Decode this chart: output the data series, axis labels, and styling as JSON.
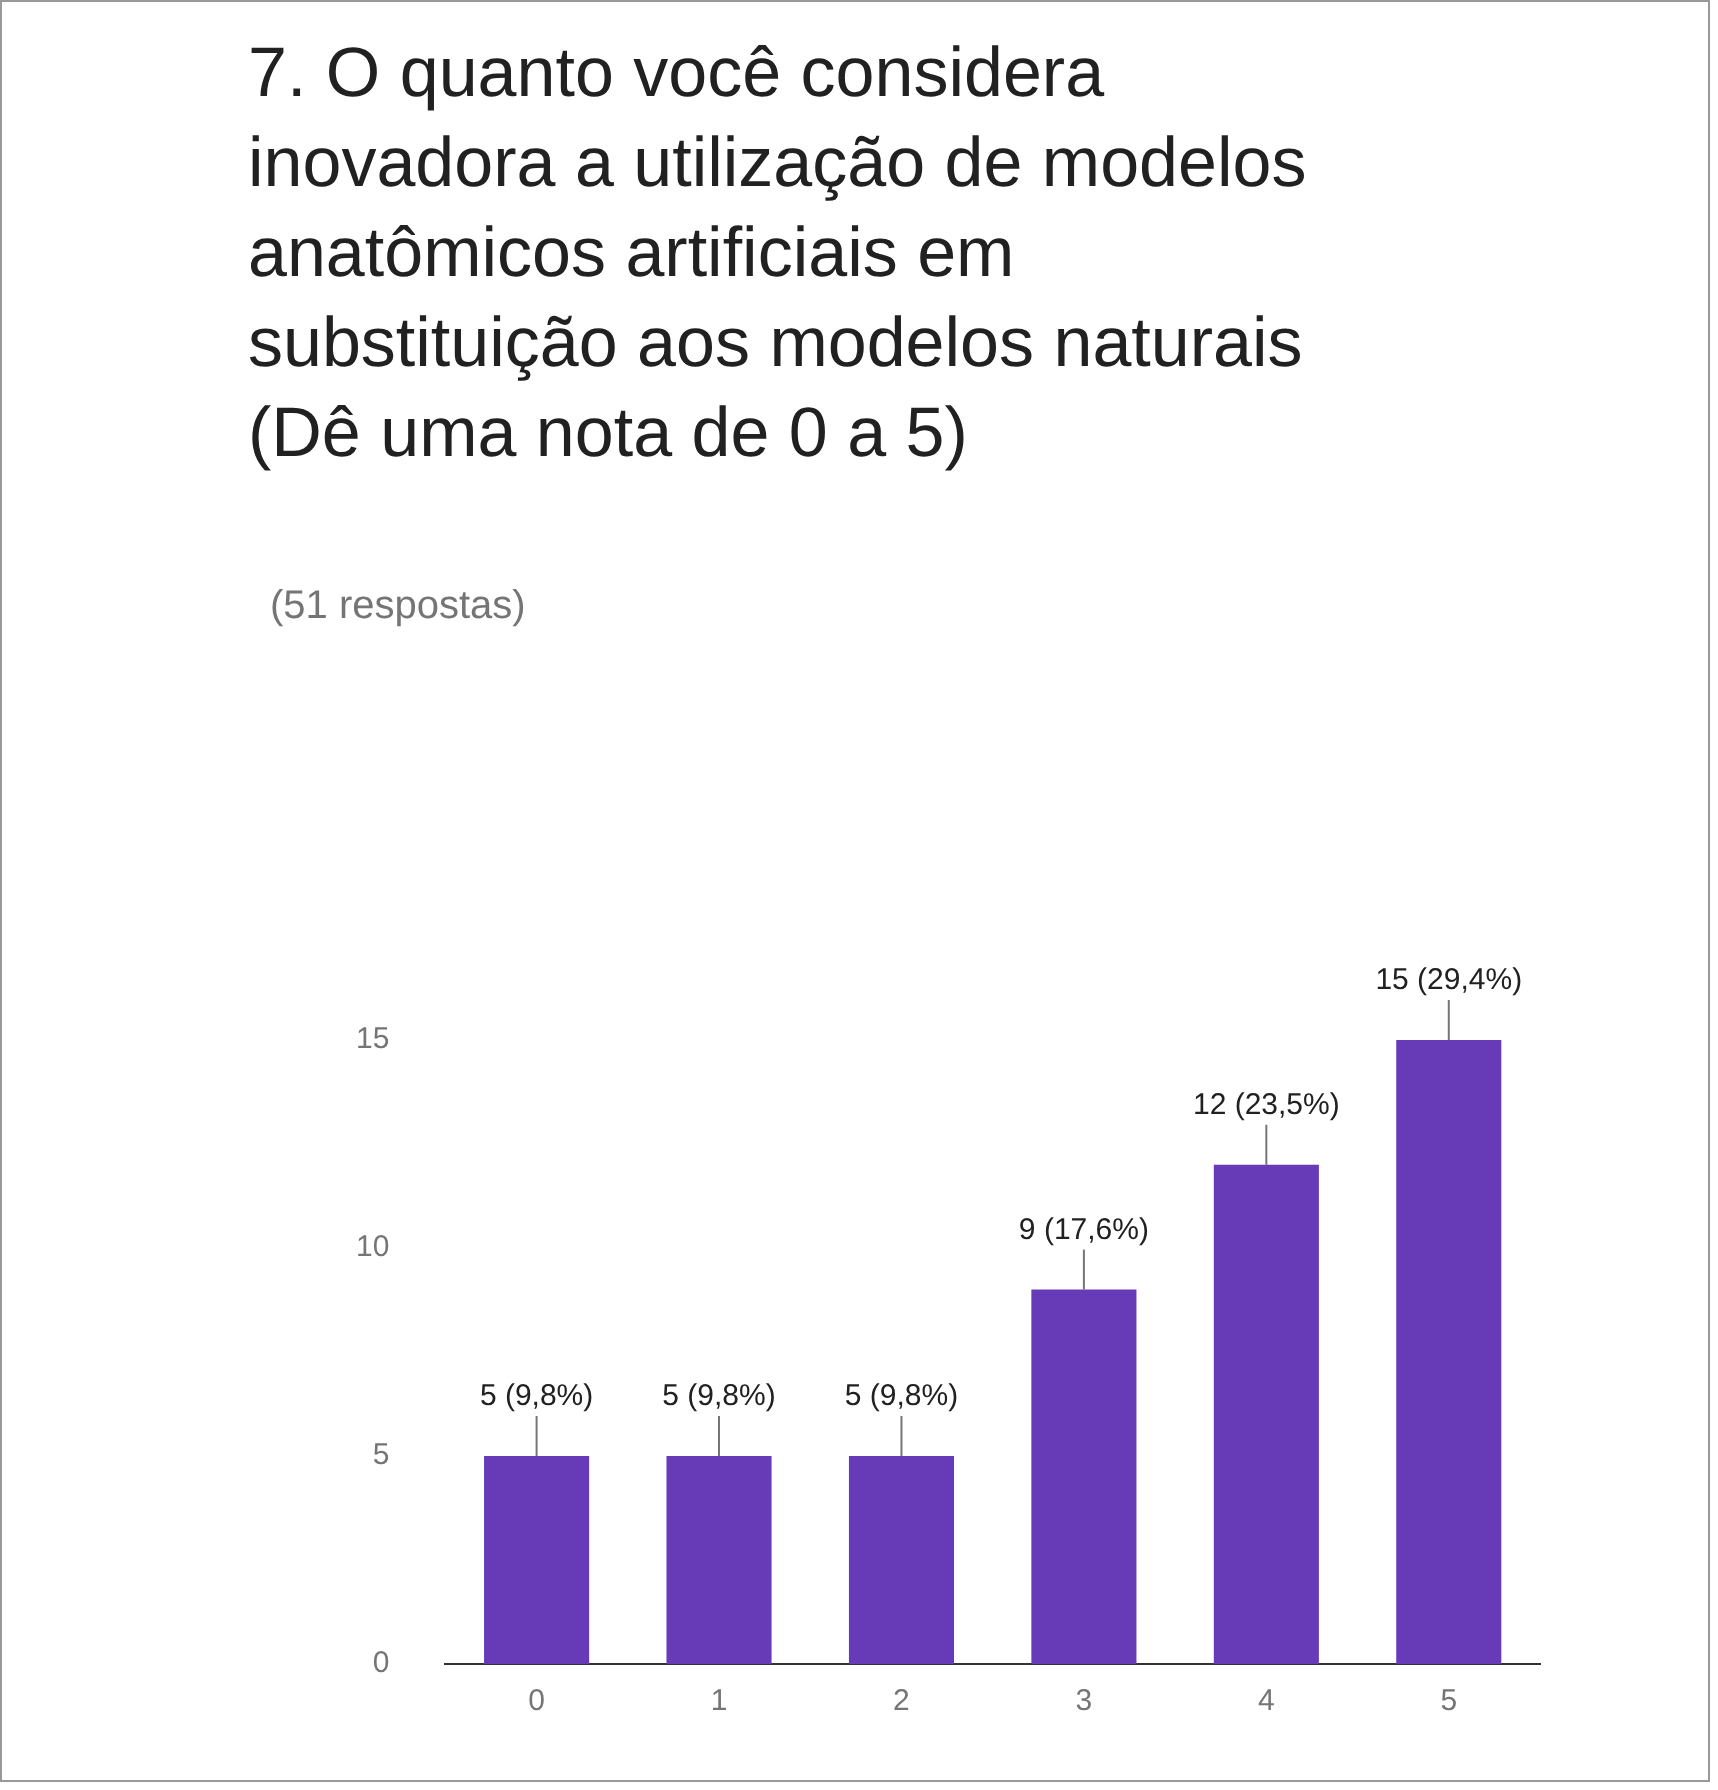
{
  "chart_data": {
    "type": "bar",
    "title": "7. O quanto você considera inovadora a utilização de modelos anatômicos artificiais em substituição aos modelos naturais (Dê uma nota de 0 a 5)",
    "subtitle": "(51 respostas)",
    "categories": [
      "0",
      "1",
      "2",
      "3",
      "4",
      "5"
    ],
    "values": [
      5,
      5,
      5,
      9,
      12,
      15
    ],
    "value_labels": [
      "5 (9,8%)",
      "5 (9,8%)",
      "5 (9,8%)",
      "9 (17,6%)",
      "12 (23,5%)",
      "15 (29,4%)"
    ],
    "color": "#673ab7",
    "ylim": [
      0,
      15
    ],
    "yticks": [
      0,
      5,
      10,
      15
    ],
    "grid": false,
    "legend": false
  }
}
